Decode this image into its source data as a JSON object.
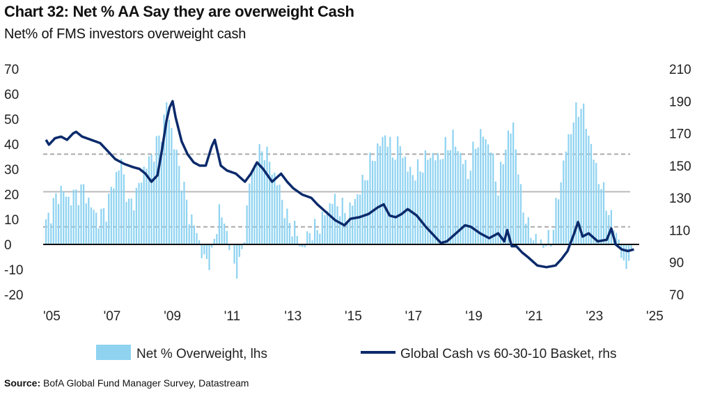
{
  "title": "Chart 32: Net % AA Say they are overweight Cash",
  "subtitle": "Net% of FMS investors overweight cash",
  "source_label": "Source:",
  "source_text": "BofA Global Fund Manager Survey, Datastream",
  "colors": {
    "bars": "#8fd3f1",
    "line": "#0b2a6b",
    "zero": "#000000",
    "grid": "#bbbbbb",
    "dashed": "#aaaaaa"
  },
  "chart_data": {
    "type": "bar+line",
    "x_ticks": [
      "'05",
      "'07",
      "'09",
      "'11",
      "'13",
      "'15",
      "'17",
      "'19",
      "'21",
      "'23",
      "'25"
    ],
    "xlim": [
      2005,
      2025
    ],
    "y_left": {
      "ticks": [
        "70",
        "60",
        "50",
        "40",
        "30",
        "20",
        "10",
        "0",
        "-10",
        "-20"
      ],
      "lim": [
        -20,
        70
      ]
    },
    "y_right": {
      "ticks": [
        "210",
        "190",
        "170",
        "150",
        "130",
        "110",
        "90",
        "70"
      ],
      "lim": [
        70,
        210
      ]
    },
    "reference_lines_lhs": [
      {
        "value": 36,
        "style": "dashed"
      },
      {
        "value": 21,
        "style": "solid"
      },
      {
        "value": 7,
        "style": "dashed"
      }
    ],
    "legend": [
      "Net % Overweight, lhs",
      "Global Cash vs 60-30-10 Basket, rhs"
    ],
    "bars_series": {
      "name": "Net % Overweight, lhs",
      "axis": "left",
      "points": [
        [
          2005.0,
          8
        ],
        [
          2005.25,
          16
        ],
        [
          2005.5,
          22
        ],
        [
          2005.75,
          18
        ],
        [
          2006.0,
          20
        ],
        [
          2006.25,
          22
        ],
        [
          2006.5,
          15
        ],
        [
          2006.75,
          10
        ],
        [
          2007.0,
          14
        ],
        [
          2007.25,
          25
        ],
        [
          2007.5,
          33
        ],
        [
          2007.75,
          15
        ],
        [
          2008.0,
          20
        ],
        [
          2008.25,
          30
        ],
        [
          2008.5,
          35
        ],
        [
          2008.75,
          42
        ],
        [
          2008.9,
          48
        ],
        [
          2009.0,
          56
        ],
        [
          2009.1,
          50
        ],
        [
          2009.25,
          40
        ],
        [
          2009.5,
          26
        ],
        [
          2009.75,
          12
        ],
        [
          2010.0,
          5
        ],
        [
          2010.25,
          -7
        ],
        [
          2010.5,
          -5
        ],
        [
          2010.75,
          14
        ],
        [
          2011.0,
          5
        ],
        [
          2011.25,
          -8
        ],
        [
          2011.4,
          -10
        ],
        [
          2011.6,
          5
        ],
        [
          2011.75,
          25
        ],
        [
          2012.0,
          35
        ],
        [
          2012.25,
          38
        ],
        [
          2012.5,
          30
        ],
        [
          2012.75,
          22
        ],
        [
          2013.0,
          10
        ],
        [
          2013.25,
          6
        ],
        [
          2013.5,
          -2
        ],
        [
          2013.75,
          5
        ],
        [
          2014.0,
          6
        ],
        [
          2014.25,
          12
        ],
        [
          2014.5,
          18
        ],
        [
          2014.75,
          15
        ],
        [
          2015.0,
          12
        ],
        [
          2015.25,
          18
        ],
        [
          2015.5,
          24
        ],
        [
          2015.75,
          32
        ],
        [
          2016.0,
          38
        ],
        [
          2016.25,
          44
        ],
        [
          2016.5,
          36
        ],
        [
          2016.75,
          40
        ],
        [
          2017.0,
          30
        ],
        [
          2017.25,
          28
        ],
        [
          2017.5,
          32
        ],
        [
          2017.75,
          36
        ],
        [
          2018.0,
          34
        ],
        [
          2018.25,
          38
        ],
        [
          2018.5,
          42
        ],
        [
          2018.75,
          36
        ],
        [
          2019.0,
          28
        ],
        [
          2019.25,
          40
        ],
        [
          2019.5,
          44
        ],
        [
          2019.75,
          38
        ],
        [
          2020.0,
          22
        ],
        [
          2020.25,
          40
        ],
        [
          2020.5,
          48
        ],
        [
          2020.75,
          20
        ],
        [
          2021.0,
          6
        ],
        [
          2021.25,
          2
        ],
        [
          2021.5,
          0
        ],
        [
          2021.75,
          2
        ],
        [
          2022.0,
          20
        ],
        [
          2022.25,
          38
        ],
        [
          2022.5,
          50
        ],
        [
          2022.75,
          56
        ],
        [
          2023.0,
          44
        ],
        [
          2023.25,
          30
        ],
        [
          2023.5,
          20
        ],
        [
          2023.75,
          10
        ],
        [
          2024.0,
          2
        ],
        [
          2024.15,
          -10
        ],
        [
          2024.3,
          -5
        ],
        [
          2024.45,
          -7
        ]
      ]
    },
    "line_series": {
      "name": "Global Cash vs 60-30-10 Basket, rhs",
      "axis": "right",
      "points": [
        [
          2005.0,
          166
        ],
        [
          2005.1,
          163
        ],
        [
          2005.3,
          167
        ],
        [
          2005.5,
          168
        ],
        [
          2005.7,
          166
        ],
        [
          2005.9,
          170
        ],
        [
          2006.0,
          171
        ],
        [
          2006.2,
          168
        ],
        [
          2006.5,
          166
        ],
        [
          2006.8,
          164
        ],
        [
          2007.0,
          160
        ],
        [
          2007.3,
          154
        ],
        [
          2007.6,
          151
        ],
        [
          2007.9,
          149
        ],
        [
          2008.1,
          148
        ],
        [
          2008.3,
          145
        ],
        [
          2008.5,
          140
        ],
        [
          2008.7,
          144
        ],
        [
          2008.85,
          160
        ],
        [
          2009.0,
          178
        ],
        [
          2009.1,
          186
        ],
        [
          2009.2,
          190
        ],
        [
          2009.3,
          180
        ],
        [
          2009.5,
          165
        ],
        [
          2009.7,
          157
        ],
        [
          2009.9,
          152
        ],
        [
          2010.1,
          150
        ],
        [
          2010.3,
          150
        ],
        [
          2010.5,
          162
        ],
        [
          2010.6,
          166
        ],
        [
          2010.8,
          150
        ],
        [
          2011.0,
          147
        ],
        [
          2011.3,
          145
        ],
        [
          2011.6,
          140
        ],
        [
          2011.8,
          145
        ],
        [
          2012.0,
          152
        ],
        [
          2012.2,
          148
        ],
        [
          2012.5,
          140
        ],
        [
          2012.8,
          145
        ],
        [
          2013.0,
          140
        ],
        [
          2013.2,
          136
        ],
        [
          2013.5,
          132
        ],
        [
          2013.8,
          130
        ],
        [
          2014.0,
          126
        ],
        [
          2014.3,
          121
        ],
        [
          2014.6,
          116
        ],
        [
          2014.9,
          113
        ],
        [
          2015.1,
          117
        ],
        [
          2015.4,
          118
        ],
        [
          2015.7,
          120
        ],
        [
          2016.0,
          124
        ],
        [
          2016.2,
          126
        ],
        [
          2016.4,
          119
        ],
        [
          2016.6,
          118
        ],
        [
          2016.8,
          120
        ],
        [
          2017.0,
          123
        ],
        [
          2017.3,
          119
        ],
        [
          2017.6,
          112
        ],
        [
          2017.9,
          106
        ],
        [
          2018.1,
          102
        ],
        [
          2018.3,
          103
        ],
        [
          2018.6,
          108
        ],
        [
          2018.9,
          113
        ],
        [
          2019.1,
          112
        ],
        [
          2019.4,
          108
        ],
        [
          2019.7,
          105
        ],
        [
          2020.0,
          108
        ],
        [
          2020.2,
          103
        ],
        [
          2020.3,
          110
        ],
        [
          2020.45,
          100
        ],
        [
          2020.6,
          100
        ],
        [
          2020.8,
          96
        ],
        [
          2021.0,
          93
        ],
        [
          2021.3,
          88
        ],
        [
          2021.6,
          87
        ],
        [
          2021.9,
          88
        ],
        [
          2022.1,
          92
        ],
        [
          2022.3,
          97
        ],
        [
          2022.5,
          107
        ],
        [
          2022.65,
          115
        ],
        [
          2022.8,
          106
        ],
        [
          2023.0,
          108
        ],
        [
          2023.3,
          103
        ],
        [
          2023.6,
          104
        ],
        [
          2023.75,
          111
        ],
        [
          2023.9,
          101
        ],
        [
          2024.1,
          98
        ],
        [
          2024.3,
          97
        ],
        [
          2024.5,
          98
        ]
      ]
    }
  }
}
